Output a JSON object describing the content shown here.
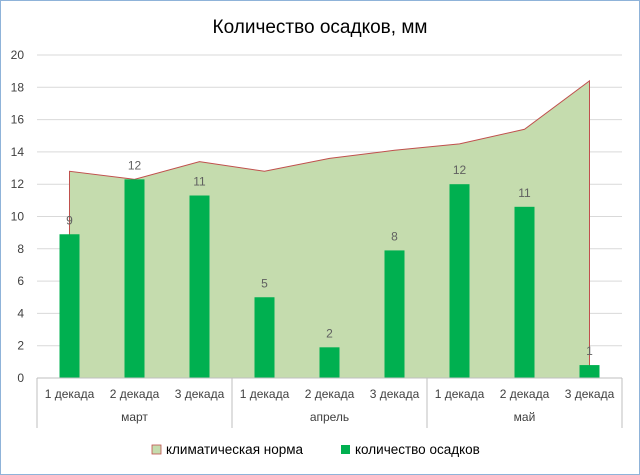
{
  "chart_data": {
    "type": "bar",
    "title": "Количество осадков, мм",
    "xlabel": "",
    "ylabel": "",
    "ylim": [
      0,
      20
    ],
    "yticks": [
      "0",
      "2",
      "4",
      "6",
      "8",
      "10",
      "12",
      "14",
      "16",
      "18",
      "20"
    ],
    "categories": [
      "1 декада",
      "2 декада",
      "3 декада",
      "1 декада",
      "2 декада",
      "3 декада",
      "1 декада",
      "2 декада",
      "3 декада"
    ],
    "groups": [
      {
        "label": "март",
        "count": 3
      },
      {
        "label": "апрель",
        "count": 3
      },
      {
        "label": "май",
        "count": 3
      }
    ],
    "series": [
      {
        "name": "климатическая норма",
        "type": "area",
        "color": "#c5dcae",
        "stroke": "#c0504d",
        "values": [
          12.8,
          12.3,
          13.4,
          12.8,
          13.6,
          14.1,
          14.5,
          15.4,
          18.4
        ]
      },
      {
        "name": "количество осадков",
        "type": "bar",
        "color": "#00b050",
        "values": [
          8.9,
          12.3,
          11.3,
          5.0,
          1.9,
          7.9,
          12.0,
          10.6,
          0.8
        ],
        "data_labels": [
          "9",
          "12",
          "11",
          "5",
          "2",
          "8",
          "12",
          "11",
          "1"
        ]
      }
    ],
    "grid": true,
    "legend_position": "bottom"
  }
}
